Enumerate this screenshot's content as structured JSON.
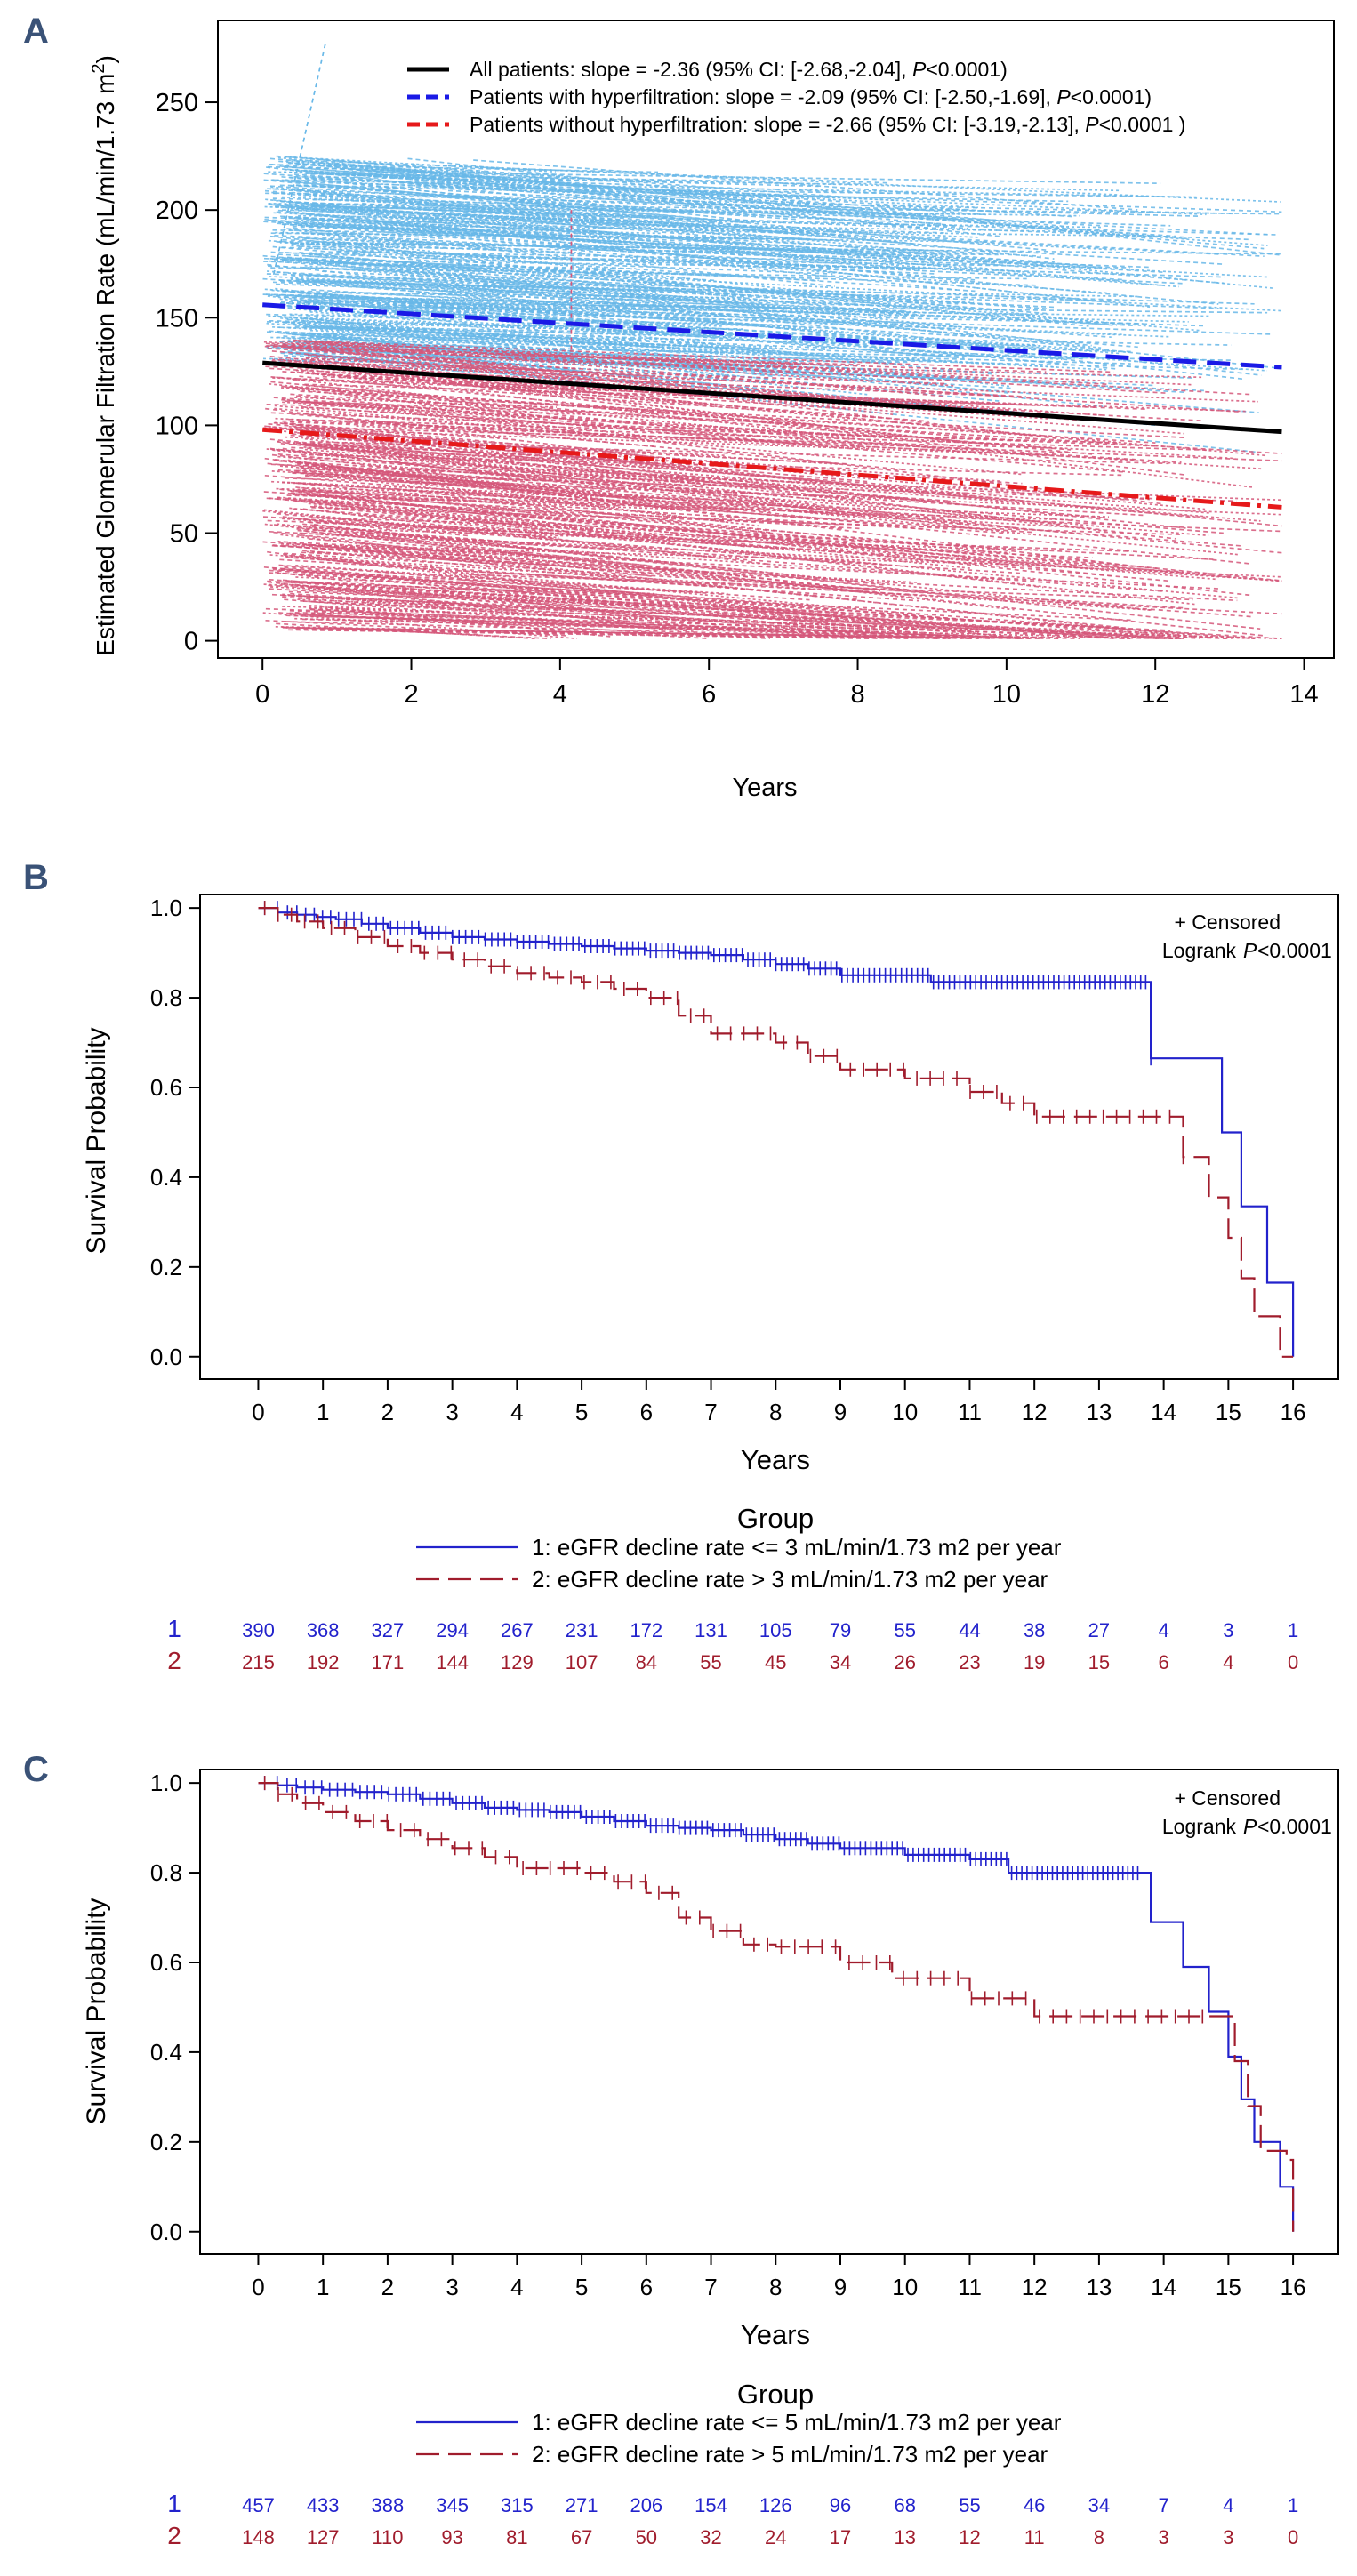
{
  "chart_data": [
    {
      "panel": "A",
      "type": "line",
      "ylabel": "Estimated Glomerular Filtration Rate (mL/min/1.73  m2)",
      "xlabel": "Years",
      "xlim": [
        -0.6,
        14.4
      ],
      "ylim": [
        -8,
        288
      ],
      "xticks": [
        0,
        2,
        4,
        6,
        8,
        10,
        12,
        14
      ],
      "yticks": [
        0,
        50,
        100,
        150,
        200,
        250
      ],
      "grid": false,
      "legend_position": "top",
      "series": [
        {
          "name": "All patients",
          "label_text": "All patients: slope = -2.36 (95% CI: [-2.68,-2.04],",
          "p_text": "<0.0001)",
          "color": "#000000",
          "dash": "solid",
          "x": [
            0,
            13.7
          ],
          "y": [
            129,
            97
          ]
        },
        {
          "name": "Patients with hyperfiltration",
          "label_text": "Patients with hyperfiltration: slope = -2.09 (95% CI: [-2.50,-1.69],",
          "p_text": "<0.0001)",
          "color": "#1a1ae6",
          "dash": "dash",
          "x": [
            0,
            13.7
          ],
          "y": [
            156,
            127
          ]
        },
        {
          "name": "Patients without hyperfiltration",
          "label_text": "Patients without hyperfiltration: slope = -2.66 (95% CI: [-3.19,-2.13],",
          "p_text": "<0.0001 )",
          "color": "#e6191a",
          "dash": "dashdot",
          "x": [
            0,
            13.7
          ],
          "y": [
            98,
            62
          ]
        }
      ],
      "individual_trajectories": {
        "hyperfiltration_color": "#68b8e8",
        "non_hyperfiltration_color": "#d5577a",
        "hyperfiltration_baseline_range": [
          130,
          225
        ],
        "non_hyperfiltration_baseline_range": [
          5,
          140
        ]
      }
    },
    {
      "panel": "B",
      "type": "line",
      "subtype": "kaplan-meier",
      "ylabel": "Survival Probability",
      "xlabel": "Years",
      "xlim": [
        -0.9,
        16.7
      ],
      "ylim": [
        -0.05,
        1.03
      ],
      "xticks": [
        0,
        1,
        2,
        3,
        4,
        5,
        6,
        7,
        8,
        9,
        10,
        11,
        12,
        13,
        14,
        15,
        16
      ],
      "yticks": [
        0.0,
        0.2,
        0.4,
        0.6,
        0.8,
        1.0
      ],
      "annotation": "+ Censored",
      "logrank_prefix": "Logrank",
      "logrank_p": "<0.0001",
      "legend_title": "Group",
      "series": [
        {
          "id": "1",
          "name": "1: eGFR decline rate <= 3 mL/min/1.73 m2 per year",
          "color": "#2222cc",
          "dash": "solid",
          "x": [
            0,
            0.3,
            0.6,
            0.9,
            1.2,
            1.6,
            2,
            2.5,
            3,
            3.5,
            4,
            4.5,
            5,
            5.5,
            6,
            6.5,
            7,
            7.5,
            8,
            8.5,
            9,
            10.4,
            13.8,
            14.9,
            15.2,
            15.6,
            16
          ],
          "y": [
            1,
            0.99,
            0.985,
            0.98,
            0.975,
            0.965,
            0.955,
            0.945,
            0.935,
            0.93,
            0.925,
            0.92,
            0.915,
            0.91,
            0.905,
            0.9,
            0.895,
            0.885,
            0.875,
            0.865,
            0.85,
            0.835,
            0.665,
            0.5,
            0.335,
            0.165,
            0.0
          ],
          "censor_range": [
            0.1,
            13.8
          ]
        },
        {
          "id": "2",
          "name": "2: eGFR decline rate > 3 mL/min/1.73 m2 per year",
          "color": "#a01c2c",
          "dash": "longdash",
          "x": [
            0,
            0.3,
            0.6,
            1,
            1.5,
            2,
            2.5,
            3,
            3.5,
            4,
            4.5,
            5,
            5.5,
            6,
            6.5,
            7,
            8,
            8.5,
            9,
            10,
            11,
            11.5,
            12,
            14.3,
            14.7,
            15,
            15.2,
            15.4,
            15.8,
            16
          ],
          "y": [
            1,
            0.985,
            0.97,
            0.955,
            0.935,
            0.915,
            0.9,
            0.885,
            0.87,
            0.855,
            0.845,
            0.835,
            0.82,
            0.8,
            0.76,
            0.72,
            0.7,
            0.67,
            0.64,
            0.62,
            0.59,
            0.565,
            0.535,
            0.445,
            0.355,
            0.265,
            0.175,
            0.09,
            0.0,
            0.0
          ],
          "censor_range": [
            0.1,
            14.3
          ]
        }
      ],
      "at_risk": [
        {
          "id": "1",
          "values": [
            "390",
            "368",
            "327",
            "294",
            "267",
            "231",
            "172",
            "131",
            "105",
            "79",
            "55",
            "44",
            "38",
            "27",
            "4",
            "3",
            "1"
          ]
        },
        {
          "id": "2",
          "values": [
            "215",
            "192",
            "171",
            "144",
            "129",
            "107",
            "84",
            "55",
            "45",
            "34",
            "26",
            "23",
            "19",
            "15",
            "6",
            "4",
            "0"
          ]
        }
      ]
    },
    {
      "panel": "C",
      "type": "line",
      "subtype": "kaplan-meier",
      "ylabel": "Survival Probability",
      "xlabel": "Years",
      "xlim": [
        -0.9,
        16.7
      ],
      "ylim": [
        -0.05,
        1.03
      ],
      "xticks": [
        0,
        1,
        2,
        3,
        4,
        5,
        6,
        7,
        8,
        9,
        10,
        11,
        12,
        13,
        14,
        15,
        16
      ],
      "yticks": [
        0.0,
        0.2,
        0.4,
        0.6,
        0.8,
        1.0
      ],
      "annotation": "+ Censored",
      "logrank_prefix": "Logrank",
      "logrank_p": "<0.0001",
      "legend_title": "Group",
      "series": [
        {
          "id": "1",
          "name": "1: eGFR decline rate <= 5 mL/min/1.73 m2 per year",
          "color": "#2222cc",
          "dash": "solid",
          "x": [
            0,
            0.3,
            0.6,
            1,
            1.5,
            2,
            2.5,
            3,
            3.5,
            4,
            4.5,
            5,
            5.5,
            6,
            6.5,
            7,
            7.5,
            8,
            8.5,
            9,
            10,
            11,
            11.6,
            13.8,
            14.3,
            14.7,
            15,
            15.2,
            15.4,
            15.8,
            16
          ],
          "y": [
            1,
            0.995,
            0.99,
            0.985,
            0.98,
            0.975,
            0.965,
            0.955,
            0.945,
            0.94,
            0.935,
            0.925,
            0.915,
            0.905,
            0.9,
            0.895,
            0.885,
            0.875,
            0.865,
            0.855,
            0.84,
            0.83,
            0.8,
            0.69,
            0.59,
            0.49,
            0.39,
            0.295,
            0.2,
            0.1,
            0.0
          ],
          "censor_range": [
            0.1,
            13.6
          ]
        },
        {
          "id": "2",
          "name": "2: eGFR decline rate > 5 mL/min/1.73 m2 per year",
          "color": "#a01c2c",
          "dash": "longdash",
          "x": [
            0,
            0.3,
            0.6,
            1,
            1.5,
            2,
            2.5,
            3,
            3.5,
            4,
            5,
            5.5,
            6,
            6.5,
            7,
            7.5,
            8,
            9,
            9.8,
            11,
            12,
            14.8,
            15.1,
            15.3,
            15.5,
            15.9,
            16
          ],
          "y": [
            1,
            0.975,
            0.955,
            0.935,
            0.915,
            0.895,
            0.875,
            0.855,
            0.835,
            0.81,
            0.8,
            0.78,
            0.755,
            0.7,
            0.67,
            0.64,
            0.635,
            0.6,
            0.565,
            0.52,
            0.48,
            0.48,
            0.38,
            0.28,
            0.18,
            0.16,
            0.0
          ],
          "censor_range": [
            0.1,
            14.6
          ]
        }
      ],
      "at_risk": [
        {
          "id": "1",
          "values": [
            "457",
            "433",
            "388",
            "345",
            "315",
            "271",
            "206",
            "154",
            "126",
            "96",
            "68",
            "55",
            "46",
            "34",
            "7",
            "4",
            "1"
          ]
        },
        {
          "id": "2",
          "values": [
            "148",
            "127",
            "110",
            "93",
            "81",
            "67",
            "50",
            "32",
            "24",
            "17",
            "13",
            "12",
            "11",
            "8",
            "3",
            "3",
            "0"
          ]
        }
      ]
    }
  ]
}
